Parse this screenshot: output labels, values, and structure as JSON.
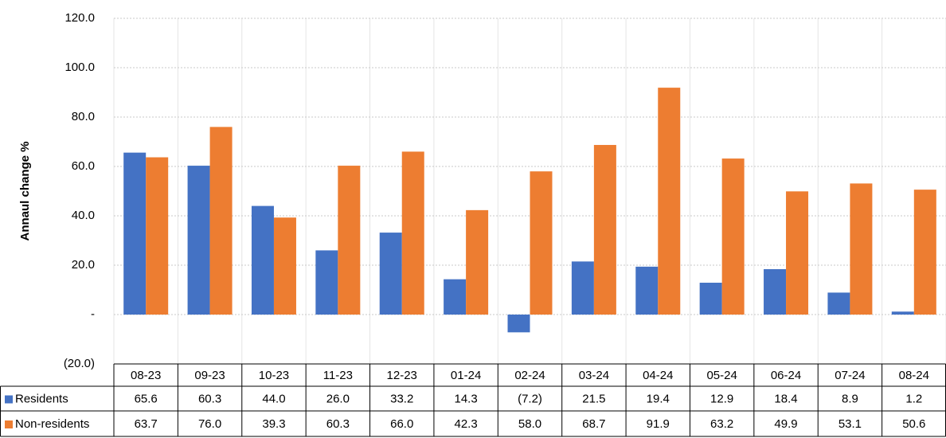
{
  "chart_data": {
    "type": "bar",
    "y_label": "Annaul change %",
    "categories": [
      "08-23",
      "09-23",
      "10-23",
      "11-23",
      "12-23",
      "01-24",
      "02-24",
      "03-24",
      "04-24",
      "05-24",
      "06-24",
      "07-24",
      "08-24"
    ],
    "series": [
      {
        "name": "Residents",
        "color": "#4472c4",
        "values": [
          65.6,
          60.3,
          44.0,
          26.0,
          33.2,
          14.3,
          -7.2,
          21.5,
          19.4,
          12.9,
          18.4,
          8.9,
          1.2
        ],
        "value_labels": [
          "65.6",
          "60.3",
          "44.0",
          "26.0",
          "33.2",
          "14.3",
          "(7.2)",
          "21.5",
          "19.4",
          "12.9",
          "18.4",
          "8.9",
          "1.2"
        ]
      },
      {
        "name": "Non-residents",
        "color": "#ed7d31",
        "values": [
          63.7,
          76.0,
          39.3,
          60.3,
          66.0,
          42.3,
          58.0,
          68.7,
          91.9,
          63.2,
          49.9,
          53.1,
          50.6
        ],
        "value_labels": [
          "63.7",
          "76.0",
          "39.3",
          "60.3",
          "66.0",
          "42.3",
          "58.0",
          "68.7",
          "91.9",
          "63.2",
          "49.9",
          "53.1",
          "50.6"
        ]
      }
    ],
    "ylim": [
      -20,
      120
    ],
    "yticks": [
      {
        "value": -20,
        "label": "(20.0)"
      },
      {
        "value": 0,
        "label": "-"
      },
      {
        "value": 20,
        "label": "20.0"
      },
      {
        "value": 40,
        "label": "40.0"
      },
      {
        "value": 60,
        "label": "60.0"
      },
      {
        "value": 80,
        "label": "80.0"
      },
      {
        "value": 100,
        "label": "100.0"
      },
      {
        "value": 120,
        "label": "120.0"
      }
    ],
    "grid": true
  }
}
